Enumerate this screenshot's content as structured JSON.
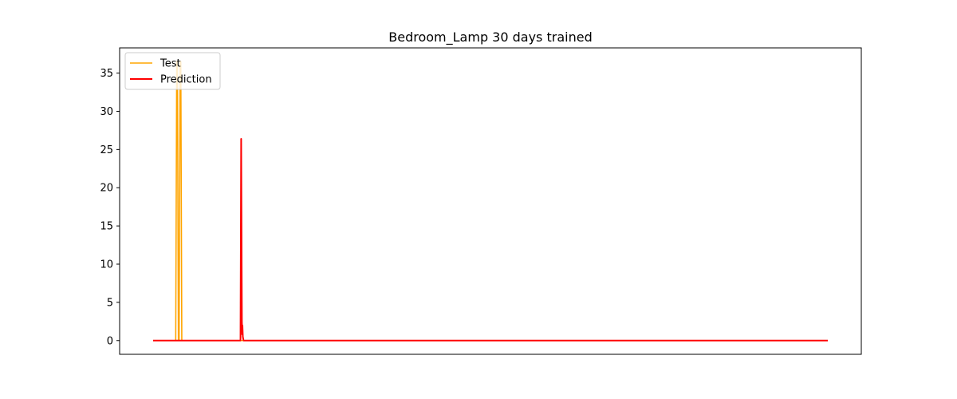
{
  "chart_data": {
    "type": "line",
    "title": "Bedroom_Lamp 30 days trained",
    "xlabel": "",
    "ylabel": "",
    "xlim": [
      0,
      1000
    ],
    "ylim": [
      -1.8,
      38.3
    ],
    "xticks_visible": false,
    "yticks": [
      0,
      5,
      10,
      15,
      20,
      25,
      30,
      35
    ],
    "grid": false,
    "legend": {
      "placement": "upper-left",
      "entries": [
        "Test",
        "Prediction"
      ]
    },
    "series": [
      {
        "name": "Test",
        "color": "#ffa500",
        "x": [
          0,
          33.5,
          35.0,
          36.0,
          37.5,
          38.5,
          40.0,
          41.0,
          42.5,
          1000
        ],
        "y": [
          0,
          0,
          36.5,
          36.5,
          0,
          0,
          36.5,
          36.5,
          0,
          0
        ]
      },
      {
        "name": "Prediction",
        "color": "#ff0000",
        "x": [
          0,
          129.5,
          130.5,
          131.2,
          131.6,
          132.0,
          132.4,
          133.0,
          134.0,
          1000
        ],
        "y": [
          0,
          0,
          26.4,
          10.0,
          2.5,
          0.8,
          2.0,
          0.5,
          0,
          0
        ]
      }
    ]
  }
}
